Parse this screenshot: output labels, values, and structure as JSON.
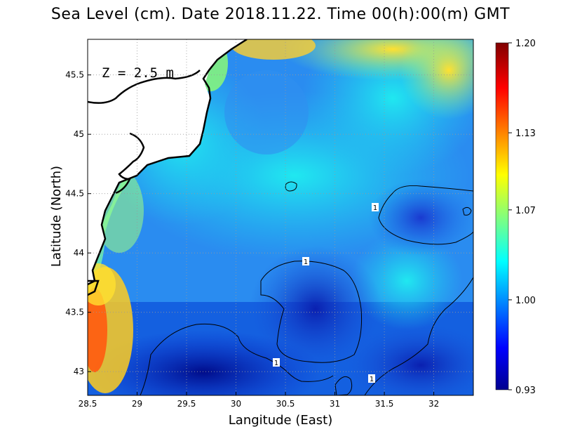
{
  "chart_data": {
    "type": "heatmap",
    "title": "Sea Level (cm). Date 2018.11.22. Time 00(h):00(m) GMT",
    "xlabel": "Langitude (East)",
    "ylabel": "Latitude (North)",
    "annotation": "Z = 2.5 m",
    "xlim": [
      28.5,
      32.4
    ],
    "ylim": [
      42.8,
      45.8
    ],
    "x_ticks": [
      "28.5",
      "29",
      "29.5",
      "30",
      "30.5",
      "31",
      "31.5",
      "32"
    ],
    "y_ticks": [
      "43",
      "43.5",
      "44",
      "44.5",
      "45",
      "45.5"
    ],
    "colorbar": {
      "min": 0.93,
      "max": 1.2,
      "labels": [
        "1.20",
        "1.13",
        "1.07",
        "1.00",
        "0.93"
      ]
    },
    "contour_label": "1",
    "grid": true,
    "colors": {
      "land": "#ffffff",
      "coast": "#000000",
      "low": "#00008f",
      "high": "#800000"
    }
  }
}
